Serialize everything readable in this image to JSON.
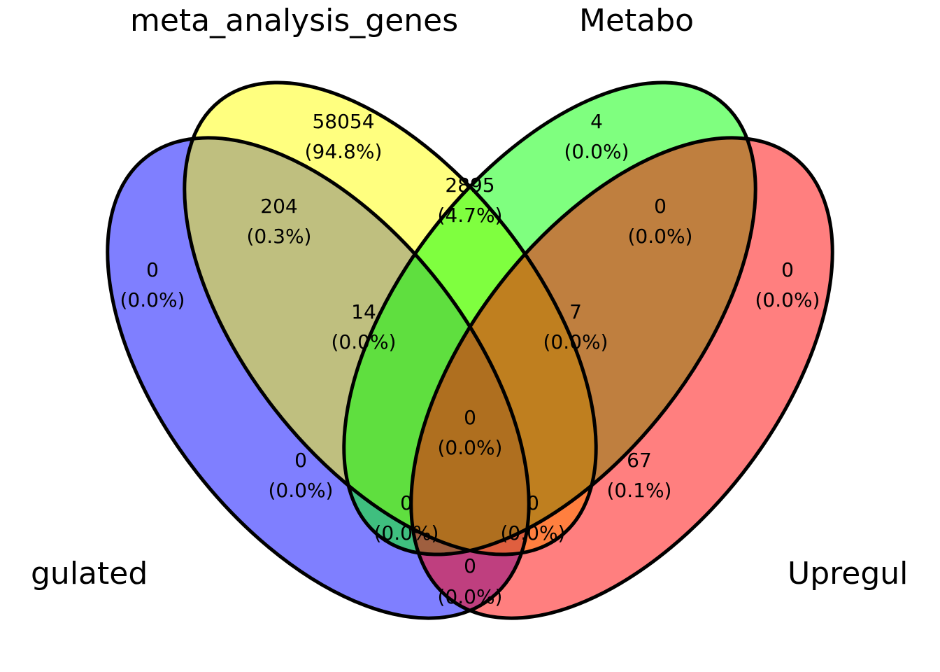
{
  "colors": {
    "set_a": "#0000ff",
    "set_b": "#ffff00",
    "set_c": "#00ff00",
    "set_d": "#ff0000"
  },
  "sets": {
    "a": "gulated",
    "b": "meta_analysis_genes",
    "c": "Metabo",
    "d": "Upregul"
  },
  "regions": {
    "a_only": {
      "count": "0",
      "pct": "(0.0%)"
    },
    "b_only": {
      "count": "58054",
      "pct": "(94.8%)"
    },
    "c_only": {
      "count": "4",
      "pct": "(0.0%)"
    },
    "d_only": {
      "count": "0",
      "pct": "(0.0%)"
    },
    "ab": {
      "count": "204",
      "pct": "(0.3%)"
    },
    "bc": {
      "count": "2895",
      "pct": "(4.7%)"
    },
    "cd": {
      "count": "0",
      "pct": "(0.0%)"
    },
    "abc": {
      "count": "14",
      "pct": "(0.0%)"
    },
    "bcd": {
      "count": "7",
      "pct": "(0.0%)"
    },
    "abcd": {
      "count": "0",
      "pct": "(0.0%)"
    },
    "ac": {
      "count": "0",
      "pct": "(0.0%)"
    },
    "bd": {
      "count": "67",
      "pct": "(0.1%)"
    },
    "acd": {
      "count": "0",
      "pct": "(0.0%)"
    },
    "abd": {
      "count": "0",
      "pct": "(0.0%)"
    },
    "ad": {
      "count": "0",
      "pct": "(0.0%)"
    }
  }
}
